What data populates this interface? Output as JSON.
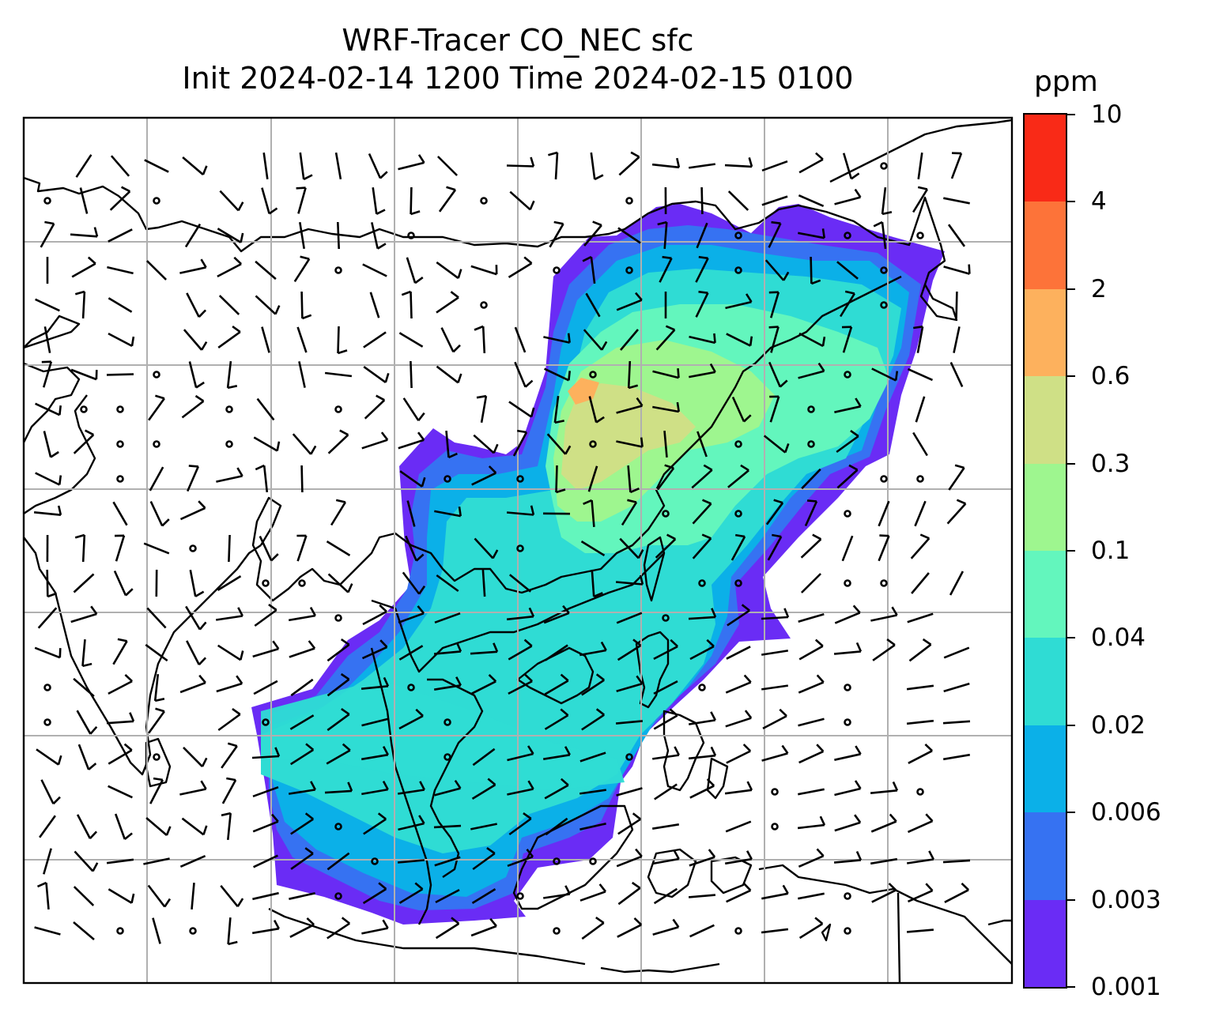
{
  "title": {
    "line1": "WRF-Tracer CO_NEC sfc",
    "line2": "Init 2024-02-14 1200 Time 2024-02-15 0100"
  },
  "colorbar": {
    "unit": "ppm",
    "levels": [
      "0.001",
      "0.003",
      "0.006",
      "0.02",
      "0.04",
      "0.1",
      "0.3",
      "0.6",
      "2",
      "4",
      "10"
    ],
    "colors": [
      "#6a2cf5",
      "#3672f2",
      "#0bb0e8",
      "#2fdcd4",
      "#63f6bd",
      "#9ef68f",
      "#cfe086",
      "#fdb15d",
      "#fd7339",
      "#f92a17"
    ]
  },
  "map": {
    "land_outline_color": "#000000",
    "gridline_color": "#b0b0b0",
    "barb_color": "#000000"
  }
}
